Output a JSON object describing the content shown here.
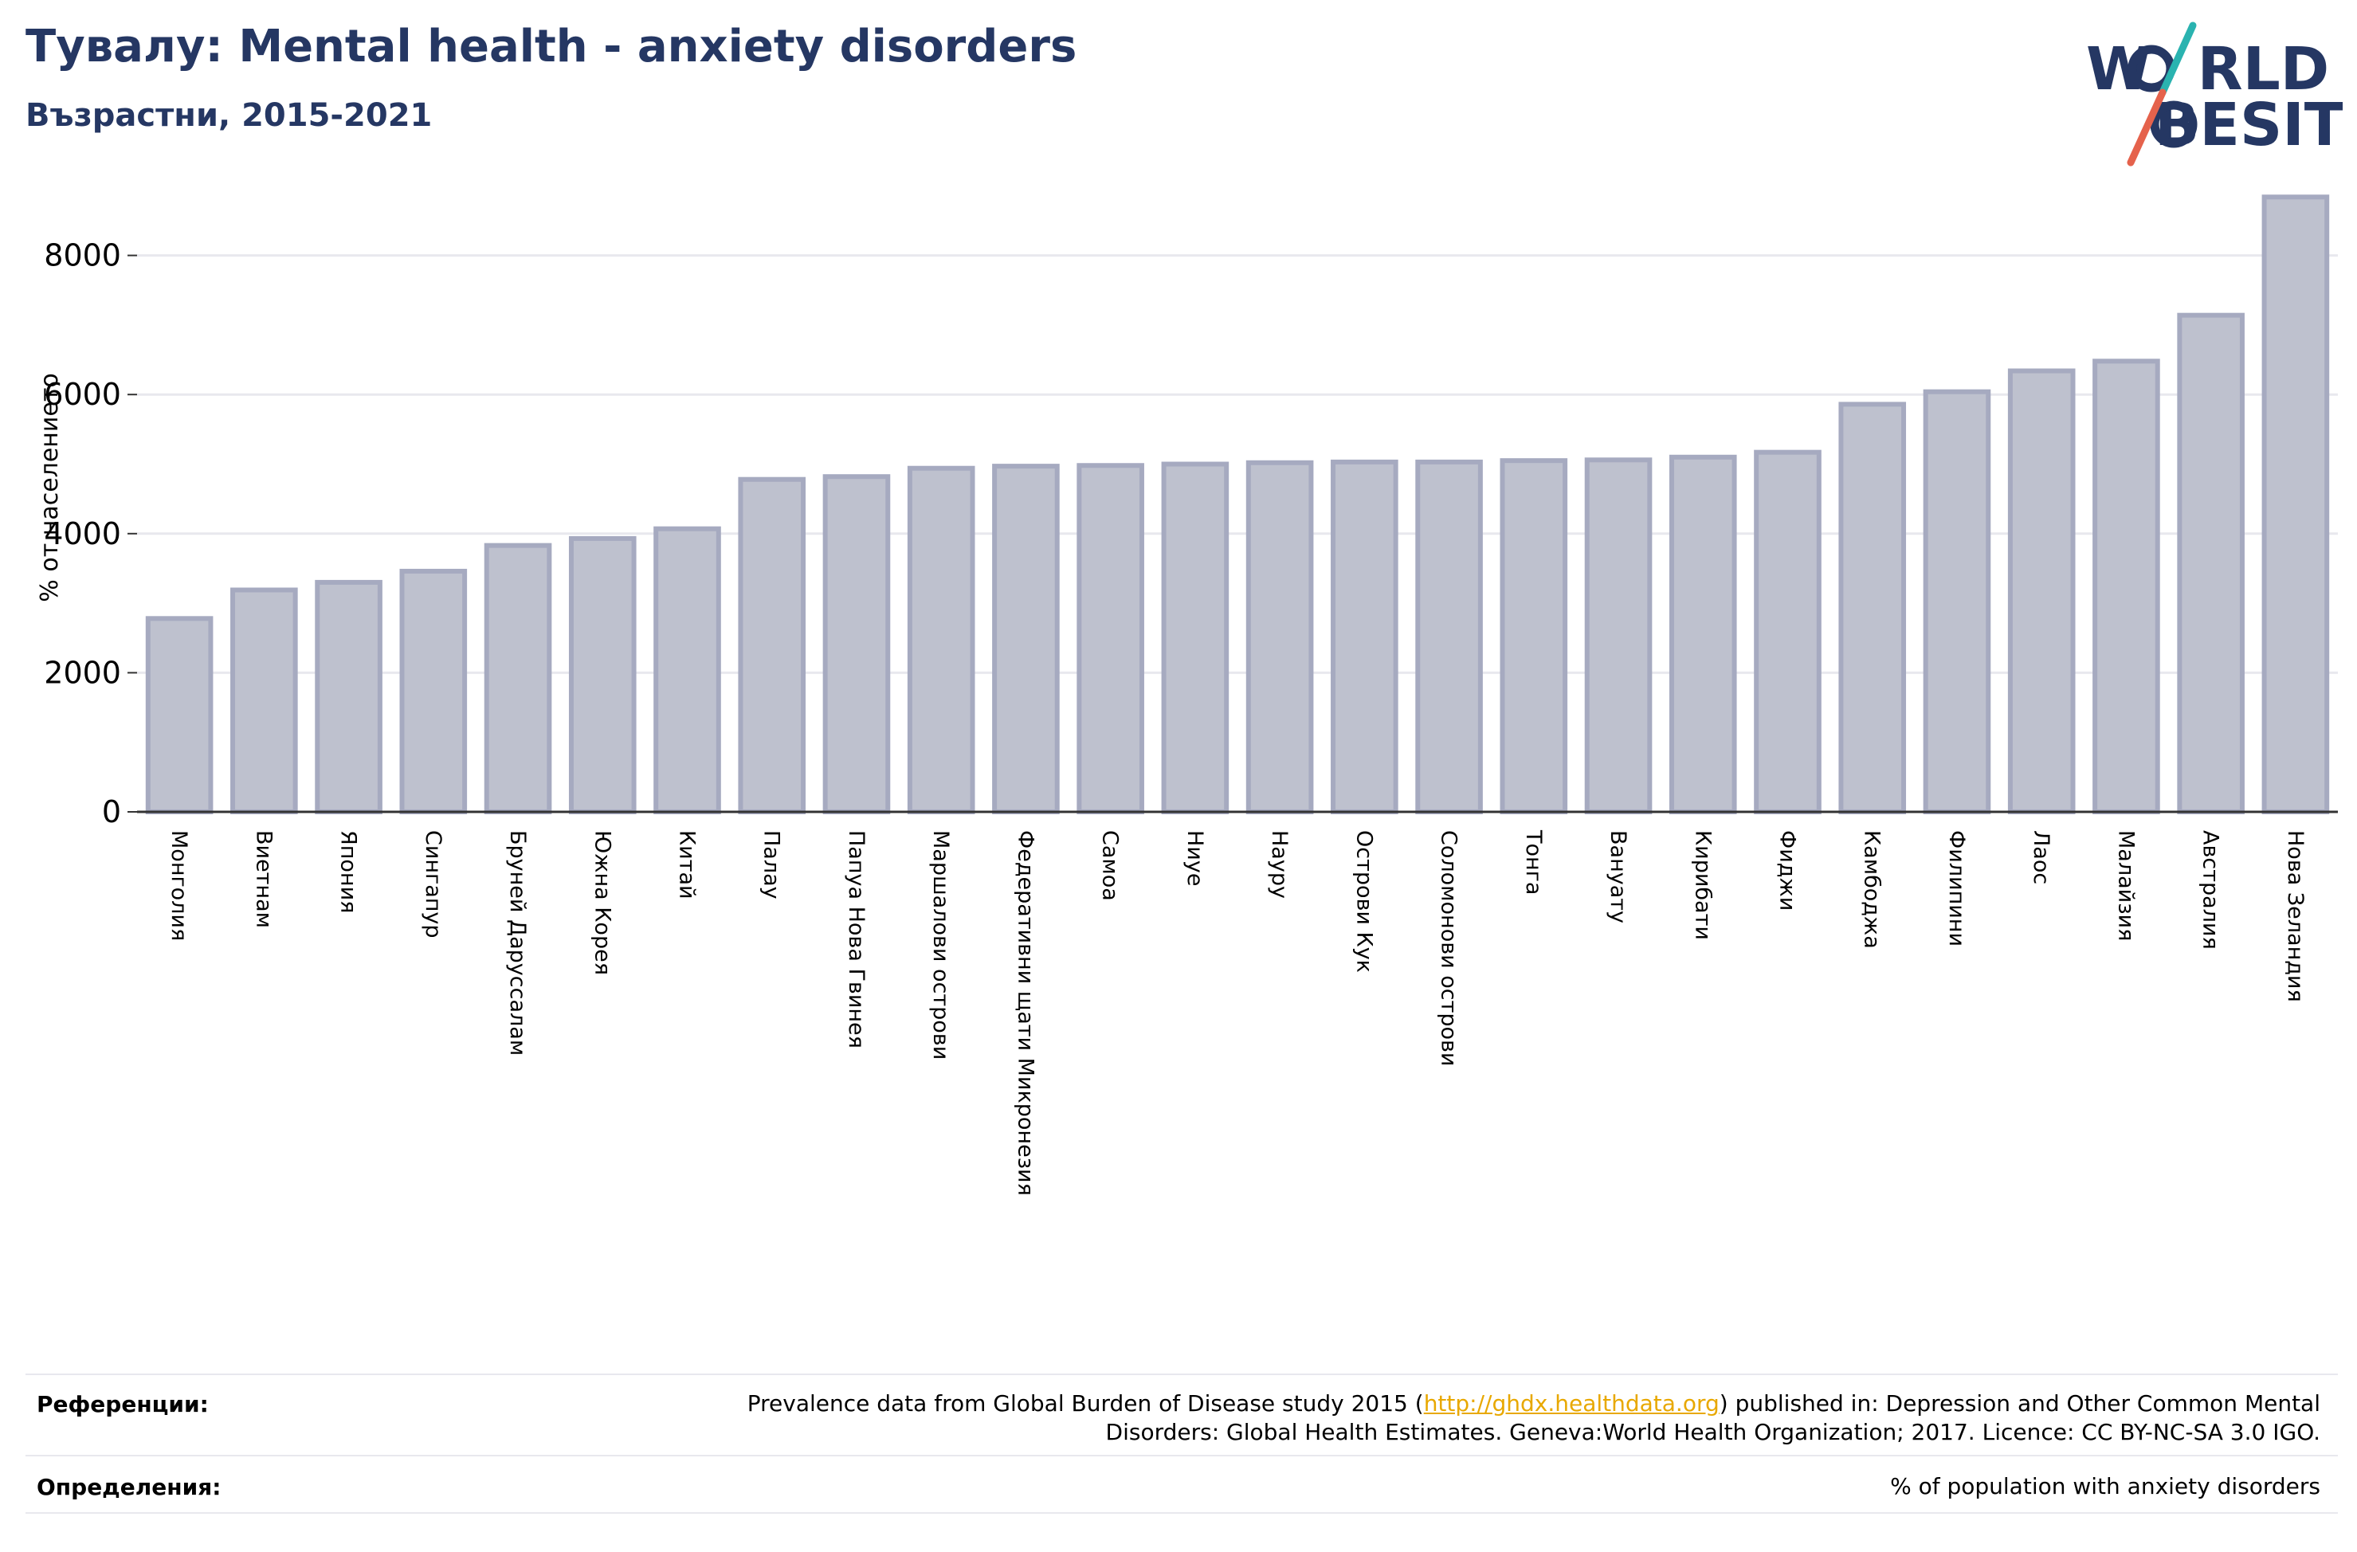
{
  "title": "Тувалу: Mental health - anxiety disorders",
  "subtitle": "Възрастни, 2015-2021",
  "logo": {
    "line1": "W",
    "line1_rest": "RLD",
    "line2": "BESITY",
    "colors": {
      "navy": "#253763",
      "teal": "#2ab3b0",
      "coral": "#e5624c"
    }
  },
  "colors": {
    "bar_fill": "#bec1ce",
    "bar_stroke": "#a6aac0",
    "grid": "#e8e8ee",
    "axis": "#333333",
    "title": "#253763",
    "link": "#e8a800"
  },
  "chart_data": {
    "type": "bar",
    "title": "Тувалу: Mental health - anxiety disorders",
    "subtitle": "Възрастни, 2015-2021",
    "xlabel": "",
    "ylabel": "% от населението",
    "ylim": [
      0,
      9000
    ],
    "yticks": [
      0,
      2000,
      4000,
      6000,
      8000
    ],
    "ytick_labels": [
      "0",
      "2000",
      "4000",
      "6000",
      "8000"
    ],
    "grid": true,
    "legend": "none",
    "categories": [
      "Монголия",
      "Виетнам",
      "Япония",
      "Сингапур",
      "Бруней Даруссалам",
      "Южна Корея",
      "Китай",
      "Палау",
      "Папуа Нова Гвинея",
      "Маршалови острови",
      "Федеративни щати Микронезия",
      "Самоа",
      "Ниуе",
      "Науру",
      "Острови Кук",
      "Соломонови острови",
      "Тонга",
      "Вануату",
      "Кирибати",
      "Фиджи",
      "Камбоджа",
      "Филипини",
      "Лаос",
      "Малайзия",
      "Австралия",
      "Нова Зеландия"
    ],
    "values": [
      2780,
      3190,
      3300,
      3460,
      3830,
      3930,
      4070,
      4780,
      4820,
      4940,
      4970,
      4980,
      5000,
      5020,
      5030,
      5030,
      5050,
      5060,
      5100,
      5170,
      5860,
      6040,
      6340,
      6480,
      7140,
      8840
    ]
  },
  "footer": {
    "references_label": "Референции:",
    "references_pre": "Prevalence data from Global Burden of Disease study 2015 (",
    "references_link": "http://ghdx.healthdata.org",
    "references_post": ") published in: Depression and Other Common Mental",
    "references_line2": "Disorders: Global Health Estimates. Geneva:World Health Organization; 2017. Licence: CC BY-NC-SA 3.0 IGO.",
    "definitions_label": "Определения:",
    "definitions_text": "% of population with anxiety disorders"
  }
}
